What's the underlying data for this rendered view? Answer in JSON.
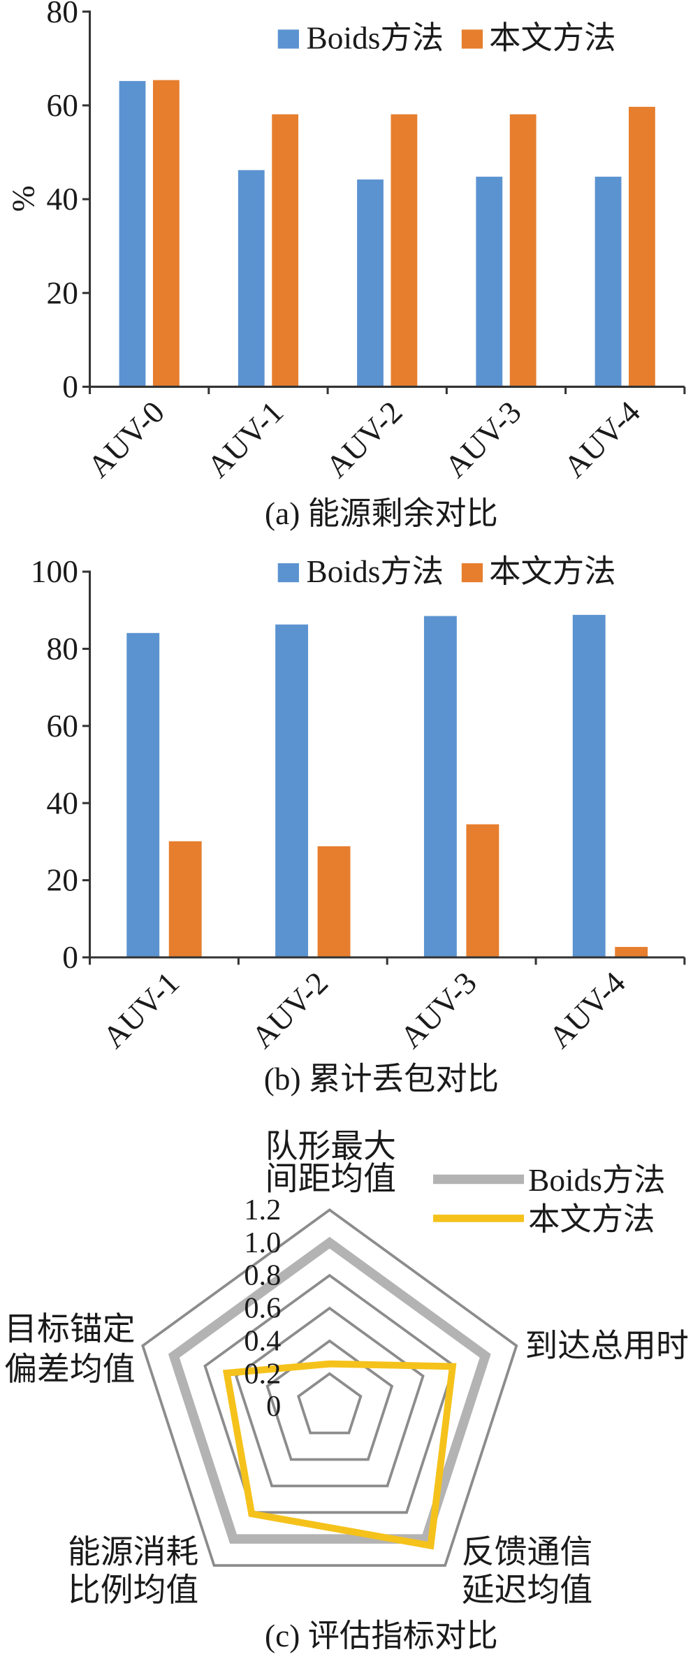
{
  "chart_data": [
    {
      "type": "bar",
      "caption": "(a) 能源剩余对比",
      "ylabel": "%",
      "ylim": [
        0,
        80
      ],
      "yticks": [
        0,
        20,
        40,
        60,
        80
      ],
      "grid": false,
      "legend": "top-right",
      "categories": [
        "AUV-0",
        "AUV-1",
        "AUV-2",
        "AUV-3",
        "AUV-4"
      ],
      "series": [
        {
          "name": "Boids方法",
          "color": "#5b93d0",
          "values": [
            65.2,
            46.2,
            44.2,
            44.8,
            44.8
          ]
        },
        {
          "name": "本文方法",
          "color": "#e67e2e",
          "values": [
            65.4,
            58.1,
            58.1,
            58.1,
            59.7
          ]
        }
      ]
    },
    {
      "type": "bar",
      "caption": "(b) 累计丢包对比",
      "ylim": [
        0,
        100
      ],
      "yticks": [
        0,
        20,
        40,
        60,
        80,
        100
      ],
      "grid": false,
      "legend": "top-right",
      "categories": [
        "AUV-1",
        "AUV-2",
        "AUV-3",
        "AUV-4"
      ],
      "series": [
        {
          "name": "Boids方法",
          "color": "#5b93d0",
          "values": [
            84.1,
            86.3,
            88.5,
            88.8
          ]
        },
        {
          "name": "本文方法",
          "color": "#e67e2e",
          "values": [
            30.1,
            28.8,
            34.5,
            2.7
          ]
        }
      ]
    },
    {
      "type": "radar",
      "caption": "(c) 评估指标对比",
      "rlim": [
        0,
        1.2
      ],
      "rticks": [
        "0",
        "0.2",
        "0.4",
        "0.6",
        "0.8",
        "1.0",
        "1.2"
      ],
      "grid": true,
      "grid_color": "#8c8c8c",
      "legend": "top-right",
      "axes": [
        [
          "队形最大",
          "间距均值"
        ],
        [
          "到达总用时"
        ],
        [
          "反馈通信",
          "延迟均值"
        ],
        [
          "能源消耗",
          "比例均值"
        ],
        [
          "目标锚定",
          "偏差均值"
        ]
      ],
      "series": [
        {
          "name": "Boids方法",
          "color": "#b3b3b3",
          "values": [
            1.0,
            1.0,
            1.0,
            1.0,
            1.0
          ]
        },
        {
          "name": "本文方法",
          "color": "#f5c21b",
          "values": [
            0.26,
            0.79,
            1.05,
            0.81,
            0.66
          ]
        }
      ]
    }
  ]
}
